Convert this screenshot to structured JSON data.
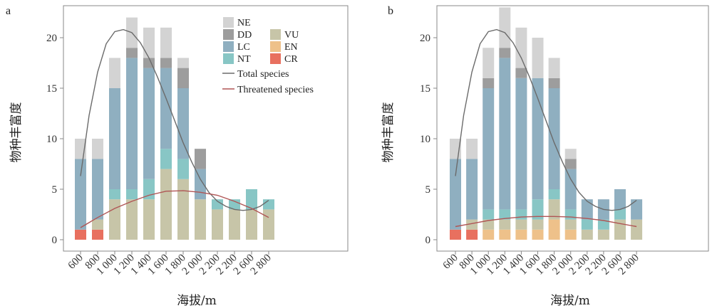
{
  "chart_data": [
    {
      "panel": "a",
      "type": "bar",
      "stacked": true,
      "xlabel": "海拔/m",
      "ylabel": "物种丰富度",
      "categories": [
        "600",
        "800",
        "1 000",
        "1 200",
        "1 400",
        "1 600",
        "1 800",
        "2 000",
        "2 200",
        "2 200",
        "2 600",
        "2 800"
      ],
      "ylim": [
        0,
        23.5
      ],
      "yticks": [
        0,
        5,
        10,
        15,
        20
      ],
      "series": [
        {
          "name": "CR",
          "color": "#e8705f",
          "values": [
            1,
            1,
            0,
            0,
            0,
            0,
            0,
            0,
            0,
            0,
            0,
            0
          ]
        },
        {
          "name": "EN",
          "color": "#eec18a",
          "values": [
            0,
            0,
            0,
            0,
            0,
            0,
            0,
            0,
            0,
            0,
            0,
            0
          ]
        },
        {
          "name": "VU",
          "color": "#c7c5a8",
          "values": [
            0,
            1,
            4,
            4,
            4,
            7,
            6,
            4,
            3,
            3,
            3,
            3
          ]
        },
        {
          "name": "NT",
          "color": "#88c6c5",
          "values": [
            0,
            0,
            1,
            1,
            2,
            2,
            2,
            0,
            1,
            1,
            2,
            1
          ]
        },
        {
          "name": "LC",
          "color": "#8fafc0",
          "values": [
            7,
            6,
            10,
            13,
            11,
            8,
            7,
            3,
            0,
            0,
            0,
            0
          ]
        },
        {
          "name": "DD",
          "color": "#9d9d9d",
          "values": [
            0,
            0,
            0,
            1,
            1,
            1,
            2,
            2,
            0,
            0,
            0,
            0
          ]
        },
        {
          "name": "NE",
          "color": "#d3d3d3",
          "values": [
            2,
            2,
            3,
            3,
            3,
            3,
            1,
            0,
            0,
            0,
            0,
            0
          ]
        }
      ],
      "lines": [
        {
          "name": "Total species",
          "color": "#6b6b6b",
          "x": [
            0,
            0.5,
            1,
            1.5,
            2,
            2.5,
            3,
            3.5,
            4,
            4.5,
            5,
            5.5,
            6,
            6.5,
            7,
            7.5,
            8,
            8.5,
            9,
            9.5,
            10,
            10.5,
            11
          ],
          "y": [
            6.3,
            12.3,
            16.6,
            19.4,
            20.6,
            20.8,
            20.5,
            19.5,
            18.0,
            16.1,
            14.0,
            11.8,
            9.6,
            7.7,
            6.0,
            4.7,
            3.8,
            3.3,
            3.0,
            2.9,
            3.0,
            3.3,
            3.9
          ]
        },
        {
          "name": "Threatened species",
          "color": "#b05555",
          "x": [
            0,
            1,
            2,
            3,
            4,
            5,
            6,
            7,
            8,
            9,
            10,
            11
          ],
          "y": [
            1.2,
            2.2,
            3.1,
            3.8,
            4.4,
            4.8,
            4.85,
            4.7,
            4.4,
            3.8,
            3.1,
            2.2
          ]
        }
      ]
    },
    {
      "panel": "b",
      "type": "bar",
      "stacked": true,
      "xlabel": "海拔/m",
      "ylabel": "物种丰富度",
      "categories": [
        "600",
        "800",
        "1 000",
        "1 200",
        "1 400",
        "1 600",
        "1 800",
        "2 000",
        "2 200",
        "2 200",
        "2 600",
        "2 800"
      ],
      "ylim": [
        0,
        23.5
      ],
      "yticks": [
        0,
        5,
        10,
        15,
        20
      ],
      "series": [
        {
          "name": "CR",
          "color": "#e8705f",
          "values": [
            1,
            1,
            0,
            0,
            0,
            0,
            0,
            0,
            0,
            0,
            0,
            0
          ]
        },
        {
          "name": "EN",
          "color": "#eec18a",
          "values": [
            0,
            0,
            1,
            1,
            1,
            1,
            2,
            1,
            0,
            0,
            0,
            0
          ]
        },
        {
          "name": "VU",
          "color": "#c7c5a8",
          "values": [
            0,
            1,
            1,
            1,
            1,
            1,
            2,
            1,
            1,
            1,
            2,
            2
          ]
        },
        {
          "name": "NT",
          "color": "#88c6c5",
          "values": [
            0,
            0,
            1,
            1,
            1,
            2,
            1,
            1,
            1,
            1,
            1,
            0
          ]
        },
        {
          "name": "LC",
          "color": "#8fafc0",
          "values": [
            7,
            6,
            12,
            15,
            13,
            12,
            10,
            4,
            2,
            2,
            2,
            2
          ]
        },
        {
          "name": "DD",
          "color": "#9d9d9d",
          "values": [
            0,
            0,
            1,
            1,
            1,
            0,
            1,
            1,
            0,
            0,
            0,
            0
          ]
        },
        {
          "name": "NE",
          "color": "#d3d3d3",
          "values": [
            2,
            2,
            3,
            4,
            4,
            4,
            2,
            1,
            0,
            0,
            0,
            0
          ]
        }
      ],
      "lines": [
        {
          "name": "Total species",
          "color": "#6b6b6b",
          "x": [
            0,
            0.5,
            1,
            1.5,
            2,
            2.5,
            3,
            3.5,
            4,
            4.5,
            5,
            5.5,
            6,
            6.5,
            7,
            7.5,
            8,
            8.5,
            9,
            9.5,
            10,
            10.5,
            11
          ],
          "y": [
            6.3,
            12.3,
            16.6,
            19.4,
            20.6,
            20.8,
            20.5,
            19.5,
            18.0,
            16.1,
            14.0,
            11.8,
            9.6,
            7.7,
            6.0,
            4.7,
            3.8,
            3.3,
            3.0,
            2.9,
            3.0,
            3.3,
            3.9
          ]
        },
        {
          "name": "Threatened species",
          "color": "#b05555",
          "x": [
            0,
            1,
            2,
            3,
            4,
            5,
            6,
            7,
            8,
            9,
            10,
            11
          ],
          "y": [
            1.3,
            1.6,
            1.9,
            2.1,
            2.25,
            2.3,
            2.3,
            2.25,
            2.1,
            1.9,
            1.6,
            1.3
          ]
        }
      ]
    }
  ],
  "legend": {
    "bar_items": [
      {
        "name": "NE",
        "color": "#d3d3d3"
      },
      {
        "name": "DD",
        "color": "#9d9d9d"
      },
      {
        "name": "LC",
        "color": "#8fafc0"
      },
      {
        "name": "NT",
        "color": "#88c6c5"
      },
      {
        "name": "VU",
        "color": "#c7c5a8"
      },
      {
        "name": "EN",
        "color": "#eec18a"
      },
      {
        "name": "CR",
        "color": "#e8705f"
      }
    ],
    "line_items": [
      {
        "name": "Total species",
        "color": "#6b6b6b"
      },
      {
        "name": "Threatened species",
        "color": "#b05555"
      }
    ]
  }
}
